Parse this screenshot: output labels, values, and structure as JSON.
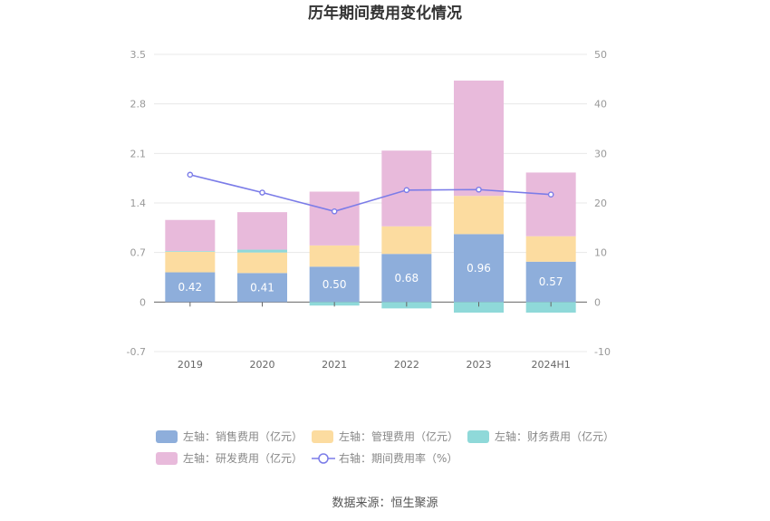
{
  "chart_data": {
    "type": "bar",
    "title": "历年期间费用变化情况",
    "source": "数据来源：恒生聚源",
    "categories": [
      "2019",
      "2020",
      "2021",
      "2022",
      "2023",
      "2024H1"
    ],
    "left_axis": {
      "ticks": [
        "3.5",
        "2.8",
        "2.1",
        "1.4",
        "0.7",
        "0",
        "-0.7"
      ],
      "ylim": [
        -0.7,
        3.5
      ]
    },
    "right_axis": {
      "ticks": [
        "50",
        "40",
        "30",
        "20",
        "10",
        "0",
        "-10"
      ],
      "ylim": [
        -10,
        50
      ]
    },
    "series": [
      {
        "name": "左轴：销售费用（亿元）",
        "color": "#8eaedb",
        "values": [
          0.42,
          0.41,
          0.5,
          0.68,
          0.96,
          0.57
        ]
      },
      {
        "name": "左轴：管理费用（亿元）",
        "color": "#fcdca0",
        "values": [
          0.29,
          0.29,
          0.3,
          0.39,
          0.54,
          0.36
        ]
      },
      {
        "name": "左轴：财务费用（亿元）",
        "color": "#8fd9d9",
        "values": [
          0.01,
          0.04,
          -0.05,
          -0.09,
          -0.15,
          -0.15
        ]
      },
      {
        "name": "左轴：研发费用（亿元）",
        "color": "#e8badb",
        "values": [
          0.44,
          0.53,
          0.76,
          1.07,
          1.63,
          0.9
        ]
      },
      {
        "name": "右轴：期间费用率（%）",
        "color": "#7b7ce8",
        "type": "line",
        "values": [
          25.7,
          22.1,
          18.3,
          22.6,
          22.7,
          21.7
        ]
      }
    ],
    "data_labels": [
      "0.42",
      "0.41",
      "0.50",
      "0.68",
      "0.96",
      "0.57"
    ],
    "grid": true,
    "legend": "bottom"
  }
}
